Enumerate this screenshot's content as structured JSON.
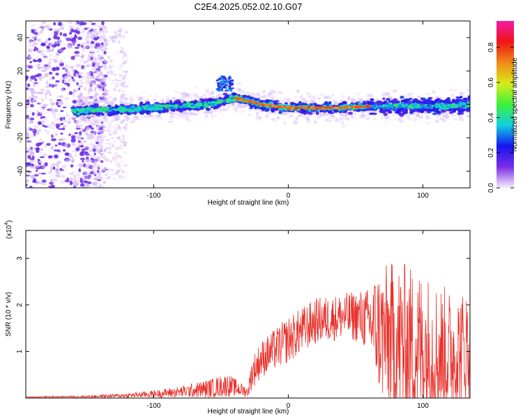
{
  "figure_title": "C2E4.2025.052.02.10.G07",
  "colors": {
    "snr_line": "#e8302a",
    "axis": "#000000"
  },
  "chart_data": [
    {
      "type": "heatmap",
      "name": "spectrogram",
      "xlabel": "Height of straight line (km)",
      "ylabel": "Frequency (Hz)",
      "xlim": [
        -195,
        135
      ],
      "ylim": [
        -50,
        50
      ],
      "x_ticks": [
        -100,
        0,
        100
      ],
      "x_tick_labels": [
        "-100",
        "0",
        "100"
      ],
      "y_ticks": [
        -40,
        -20,
        0,
        20,
        40
      ],
      "y_tick_labels": [
        "-40",
        "-20",
        "0",
        "20",
        "40"
      ],
      "colorbar": {
        "label": "Normalized spectral amplitude",
        "range": [
          0,
          0.95
        ],
        "ticks": [
          0,
          0.2,
          0.4,
          0.6,
          0.8
        ],
        "tick_labels": [
          "0.0",
          "0.2",
          "0.4",
          "0.6",
          "0.8"
        ],
        "colormap": [
          "#f8eefb",
          "#7b2ee6",
          "#1515f0",
          "#13cfe0",
          "#3df03a",
          "#d9ec1a",
          "#f08a17",
          "#f01515",
          "#f01aa8"
        ]
      },
      "trend": {
        "description": "main energy ridge near 0 Hz from about -160 km to 135 km",
        "ridge_x": [
          -160,
          -120,
          -80,
          -60,
          -45,
          -40,
          -30,
          -20,
          -10,
          0,
          20,
          40,
          60,
          80,
          100,
          120,
          135
        ],
        "ridge_y": [
          -4,
          -3,
          -1,
          0,
          3,
          4,
          2,
          0,
          -1,
          -2,
          -2,
          -2,
          -1,
          -1,
          -1,
          -1,
          0
        ]
      }
    },
    {
      "type": "line",
      "name": "snr",
      "xlabel": "Height of straight line (km)",
      "ylabel": "SNR (10 * v/v)",
      "scale_label": "(x10",
      "scale_exp": "4",
      "scale_close": ")",
      "xlim": [
        -195,
        135
      ],
      "ylim": [
        0,
        3.6
      ],
      "x_ticks": [
        -100,
        0,
        100
      ],
      "x_tick_labels": [
        "-100",
        "0",
        "100"
      ],
      "y_ticks": [
        1,
        2,
        3
      ],
      "y_tick_labels": [
        "1",
        "2",
        "3"
      ],
      "envelope": {
        "x": [
          -195,
          -150,
          -120,
          -100,
          -80,
          -60,
          -45,
          -30,
          -27,
          -20,
          -10,
          0,
          10,
          20,
          30,
          40,
          50,
          60,
          65,
          70,
          80,
          90,
          100,
          110,
          120,
          135
        ],
        "base": [
          0.02,
          0.03,
          0.05,
          0.08,
          0.12,
          0.18,
          0.25,
          0.12,
          0.5,
          0.8,
          1.0,
          1.2,
          1.4,
          1.6,
          1.65,
          1.7,
          1.7,
          1.6,
          1.4,
          1.2,
          1.0,
          0.9,
          0.9,
          0.8,
          0.8,
          1.0
        ],
        "amp": [
          0.01,
          0.02,
          0.05,
          0.08,
          0.12,
          0.2,
          0.25,
          0.1,
          0.35,
          0.4,
          0.45,
          0.5,
          0.5,
          0.5,
          0.5,
          0.5,
          0.55,
          0.7,
          1.2,
          1.5,
          1.8,
          1.8,
          1.7,
          1.6,
          1.4,
          1.2
        ]
      }
    }
  ]
}
